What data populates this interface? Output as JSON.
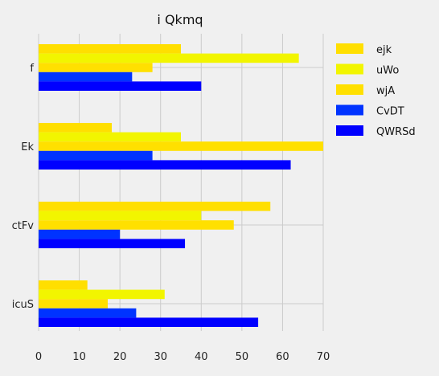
{
  "chart_data": {
    "type": "bar",
    "orientation": "horizontal",
    "title": "i Qkmq",
    "xlabel": "",
    "ylabel": "",
    "xlim": [
      0,
      70
    ],
    "x_ticks": [
      0,
      10,
      20,
      30,
      40,
      50,
      60,
      70
    ],
    "grid": true,
    "legend_position": "top-right",
    "categories": [
      "f",
      "Ek",
      "ctFv",
      "icuS"
    ],
    "series": [
      {
        "name": "ejk",
        "color": "#ffdf00",
        "values": [
          35,
          18,
          57,
          12
        ]
      },
      {
        "name": "uWo",
        "color": "#f2f500",
        "values": [
          64,
          35,
          40,
          31
        ]
      },
      {
        "name": "wjA",
        "color": "#ffe000",
        "values": [
          28,
          70,
          48,
          17
        ]
      },
      {
        "name": "CvDT",
        "color": "#0033ff",
        "values": [
          23,
          28,
          20,
          24
        ]
      },
      {
        "name": "QWRSd",
        "color": "#0000ff",
        "values": [
          40,
          62,
          36,
          54
        ]
      }
    ]
  }
}
